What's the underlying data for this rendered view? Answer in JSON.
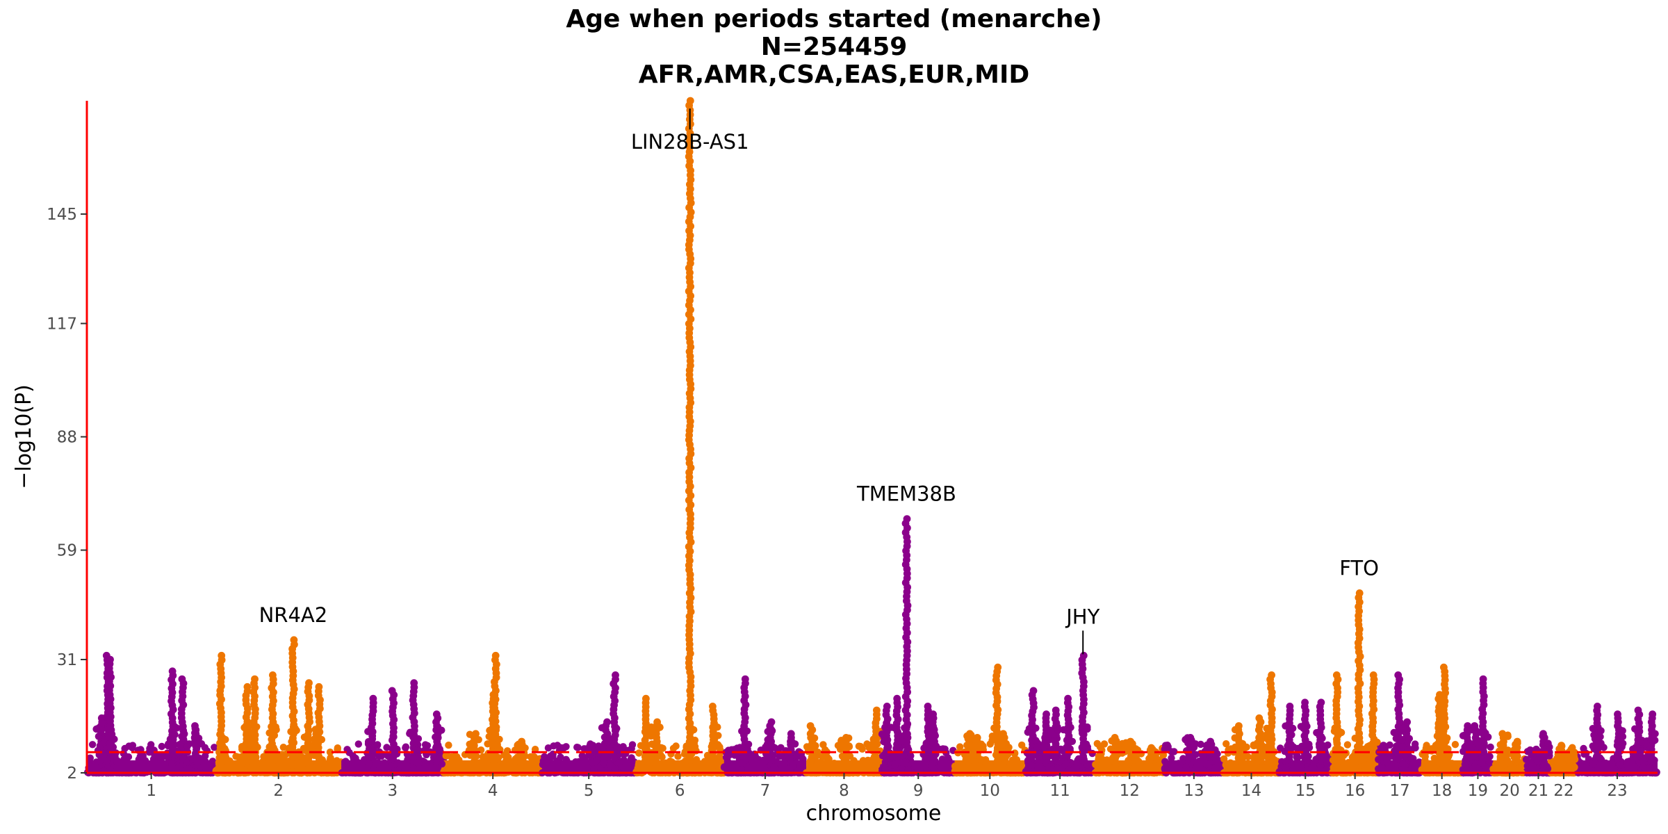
{
  "header": {
    "title": "Age when periods started (menarche)",
    "subtitle_n": "N=254459",
    "subtitle_pops": "AFR,AMR,CSA,EAS,EUR,MID"
  },
  "chart_data": {
    "type": "scatter",
    "chart_kind": "manhattan",
    "xlabel": "chromosome",
    "ylabel": "−log10(P)",
    "ylim": [
      2,
      174
    ],
    "y_ticks": [
      2,
      31,
      59,
      88,
      117,
      145
    ],
    "significance_line": 7.3,
    "grid": false,
    "colors": {
      "odd": "#8b008b",
      "even": "#ee7600",
      "axis": "#ff0000",
      "threshold": "#ff0000"
    },
    "chromosomes": [
      {
        "name": "1",
        "len": 249
      },
      {
        "name": "2",
        "len": 243
      },
      {
        "name": "3",
        "len": 198
      },
      {
        "name": "4",
        "len": 190
      },
      {
        "name": "5",
        "len": 181
      },
      {
        "name": "6",
        "len": 171
      },
      {
        "name": "7",
        "len": 159
      },
      {
        "name": "8",
        "len": 146
      },
      {
        "name": "9",
        "len": 141
      },
      {
        "name": "10",
        "len": 136
      },
      {
        "name": "11",
        "len": 135
      },
      {
        "name": "12",
        "len": 134
      },
      {
        "name": "13",
        "len": 115
      },
      {
        "name": "14",
        "len": 107
      },
      {
        "name": "15",
        "len": 102
      },
      {
        "name": "16",
        "len": 90
      },
      {
        "name": "17",
        "len": 83
      },
      {
        "name": "18",
        "len": 80
      },
      {
        "name": "19",
        "len": 59
      },
      {
        "name": "20",
        "len": 64
      },
      {
        "name": "21",
        "len": 47
      },
      {
        "name": "22",
        "len": 51
      },
      {
        "name": "23",
        "len": 156
      }
    ],
    "peaks": [
      {
        "chr": "1",
        "pos": 40,
        "p": 32
      },
      {
        "chr": "1",
        "pos": 45,
        "p": 31
      },
      {
        "chr": "1",
        "pos": 28,
        "p": 16
      },
      {
        "chr": "1",
        "pos": 165,
        "p": 28
      },
      {
        "chr": "1",
        "pos": 185,
        "p": 26
      },
      {
        "chr": "1",
        "pos": 210,
        "p": 14
      },
      {
        "chr": "2",
        "pos": 10,
        "p": 32
      },
      {
        "chr": "2",
        "pos": 60,
        "p": 24
      },
      {
        "chr": "2",
        "pos": 75,
        "p": 26
      },
      {
        "chr": "2",
        "pos": 110,
        "p": 27
      },
      {
        "chr": "2",
        "pos": 150,
        "p": 36
      },
      {
        "chr": "2",
        "pos": 180,
        "p": 25
      },
      {
        "chr": "2",
        "pos": 200,
        "p": 24
      },
      {
        "chr": "3",
        "pos": 60,
        "p": 21
      },
      {
        "chr": "3",
        "pos": 100,
        "p": 23
      },
      {
        "chr": "3",
        "pos": 140,
        "p": 25
      },
      {
        "chr": "3",
        "pos": 185,
        "p": 17
      },
      {
        "chr": "4",
        "pos": 60,
        "p": 12
      },
      {
        "chr": "4",
        "pos": 100,
        "p": 32
      },
      {
        "chr": "4",
        "pos": 95,
        "p": 22
      },
      {
        "chr": "4",
        "pos": 150,
        "p": 10
      },
      {
        "chr": "5",
        "pos": 100,
        "p": 9
      },
      {
        "chr": "5",
        "pos": 140,
        "p": 27
      },
      {
        "chr": "5",
        "pos": 125,
        "p": 15
      },
      {
        "chr": "6",
        "pos": 20,
        "p": 21
      },
      {
        "chr": "6",
        "pos": 40,
        "p": 15
      },
      {
        "chr": "6",
        "pos": 105,
        "p": 174
      },
      {
        "chr": "6",
        "pos": 150,
        "p": 19
      },
      {
        "chr": "7",
        "pos": 40,
        "p": 26
      },
      {
        "chr": "7",
        "pos": 90,
        "p": 15
      },
      {
        "chr": "7",
        "pos": 130,
        "p": 12
      },
      {
        "chr": "8",
        "pos": 10,
        "p": 14
      },
      {
        "chr": "8",
        "pos": 75,
        "p": 11
      },
      {
        "chr": "8",
        "pos": 135,
        "p": 18
      },
      {
        "chr": "9",
        "pos": 10,
        "p": 19
      },
      {
        "chr": "9",
        "pos": 30,
        "p": 21
      },
      {
        "chr": "9",
        "pos": 48,
        "p": 67
      },
      {
        "chr": "9",
        "pos": 90,
        "p": 19
      },
      {
        "chr": "9",
        "pos": 100,
        "p": 17
      },
      {
        "chr": "10",
        "pos": 30,
        "p": 12
      },
      {
        "chr": "10",
        "pos": 45,
        "p": 11
      },
      {
        "chr": "10",
        "pos": 82,
        "p": 29
      },
      {
        "chr": "10",
        "pos": 95,
        "p": 12
      },
      {
        "chr": "11",
        "pos": 15,
        "p": 23
      },
      {
        "chr": "11",
        "pos": 40,
        "p": 17
      },
      {
        "chr": "11",
        "pos": 60,
        "p": 18
      },
      {
        "chr": "11",
        "pos": 83,
        "p": 21
      },
      {
        "chr": "11",
        "pos": 112,
        "p": 32
      },
      {
        "chr": "12",
        "pos": 40,
        "p": 11
      },
      {
        "chr": "12",
        "pos": 70,
        "p": 10
      },
      {
        "chr": "12",
        "pos": 110,
        "p": 8
      },
      {
        "chr": "13",
        "pos": 50,
        "p": 11
      },
      {
        "chr": "13",
        "pos": 90,
        "p": 10
      },
      {
        "chr": "14",
        "pos": 30,
        "p": 14
      },
      {
        "chr": "14",
        "pos": 70,
        "p": 16
      },
      {
        "chr": "14",
        "pos": 92,
        "p": 27
      },
      {
        "chr": "15",
        "pos": 20,
        "p": 19
      },
      {
        "chr": "15",
        "pos": 50,
        "p": 20
      },
      {
        "chr": "15",
        "pos": 80,
        "p": 20
      },
      {
        "chr": "16",
        "pos": 10,
        "p": 27
      },
      {
        "chr": "16",
        "pos": 53,
        "p": 48
      },
      {
        "chr": "16",
        "pos": 80,
        "p": 27
      },
      {
        "chr": "17",
        "pos": 10,
        "p": 9
      },
      {
        "chr": "17",
        "pos": 40,
        "p": 27
      },
      {
        "chr": "17",
        "pos": 55,
        "p": 15
      },
      {
        "chr": "18",
        "pos": 35,
        "p": 22
      },
      {
        "chr": "18",
        "pos": 45,
        "p": 29
      },
      {
        "chr": "19",
        "pos": 10,
        "p": 14
      },
      {
        "chr": "19",
        "pos": 25,
        "p": 14
      },
      {
        "chr": "19",
        "pos": 40,
        "p": 26
      },
      {
        "chr": "20",
        "pos": 20,
        "p": 12
      },
      {
        "chr": "20",
        "pos": 45,
        "p": 10
      },
      {
        "chr": "21",
        "pos": 20,
        "p": 8
      },
      {
        "chr": "21",
        "pos": 35,
        "p": 12
      },
      {
        "chr": "22",
        "pos": 20,
        "p": 9
      },
      {
        "chr": "22",
        "pos": 40,
        "p": 8
      },
      {
        "chr": "23",
        "pos": 40,
        "p": 19
      },
      {
        "chr": "23",
        "pos": 80,
        "p": 17
      },
      {
        "chr": "23",
        "pos": 120,
        "p": 18
      },
      {
        "chr": "23",
        "pos": 145,
        "p": 17
      }
    ],
    "annotations": [
      {
        "label": "NR4A2",
        "chr": "2",
        "pos": 150,
        "p": 36,
        "position": "above",
        "leader": false
      },
      {
        "label": "LIN28B-AS1",
        "chr": "6",
        "pos": 105,
        "p": 172,
        "position": "below",
        "leader": true
      },
      {
        "label": "TMEM38B",
        "chr": "9",
        "pos": 48,
        "p": 67,
        "position": "above",
        "leader": false
      },
      {
        "label": "JHY",
        "chr": "11",
        "pos": 112,
        "p": 32,
        "position": "above",
        "leader": true
      },
      {
        "label": "FTO",
        "chr": "16",
        "pos": 53,
        "p": 48,
        "position": "above",
        "leader": false
      }
    ]
  }
}
